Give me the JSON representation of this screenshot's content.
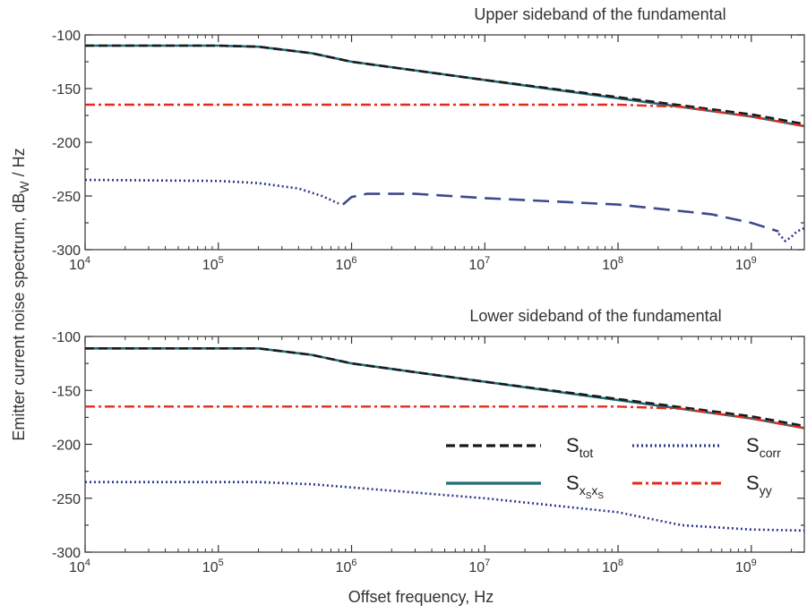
{
  "chart_data": [
    {
      "type": "line",
      "title": "Upper sideband of the fundamental",
      "xscale": "log",
      "xlim": [
        10000,
        2500000000
      ],
      "ylim": [
        -300,
        -100
      ],
      "xticks": [
        10000,
        100000,
        1000000,
        10000000,
        100000000,
        1000000000
      ],
      "xtick_labels": [
        {
          "base": "10",
          "exp": "4"
        },
        {
          "base": "10",
          "exp": "5"
        },
        {
          "base": "10",
          "exp": "6"
        },
        {
          "base": "10",
          "exp": "7"
        },
        {
          "base": "10",
          "exp": "8"
        },
        {
          "base": "10",
          "exp": "9"
        }
      ],
      "yticks": [
        "-100",
        "-150",
        "-200",
        "-250",
        "-300"
      ],
      "series": [
        {
          "key": "S_xsxs",
          "color": "#1f6e78",
          "style": "solid",
          "x": [
            10000,
            100000,
            200000,
            500000,
            1000000,
            10000000,
            100000000,
            1000000000,
            2500000000
          ],
          "y": [
            -110,
            -110,
            -111,
            -117,
            -125,
            -142,
            -159,
            -176,
            -185
          ]
        },
        {
          "key": "S_tot",
          "color": "#1a1a1a",
          "style": "dashed",
          "x": [
            10000,
            100000,
            200000,
            500000,
            1000000,
            10000000,
            100000000,
            1000000000,
            2500000000
          ],
          "y": [
            -110,
            -110,
            -111,
            -117,
            -125,
            -142,
            -158,
            -174,
            -183
          ]
        },
        {
          "key": "S_yy",
          "color": "#e8281c",
          "style": "dashdot",
          "x": [
            10000,
            100000000,
            300000000,
            1000000000,
            2500000000
          ],
          "y": [
            -165,
            -165,
            -167,
            -176,
            -185
          ]
        },
        {
          "key": "S_corr_dot1",
          "color": "#2f3a8c",
          "style": "dotted",
          "x": [
            10000,
            100000,
            200000,
            400000,
            600000,
            800000
          ],
          "y": [
            -235,
            -236,
            -238,
            -243,
            -250,
            -257
          ]
        },
        {
          "key": "S_corr_long",
          "color": "#3d4a8c",
          "style": "longdash",
          "x": [
            860000,
            1000000,
            1300000,
            3000000,
            10000000,
            100000000,
            500000000,
            1000000000,
            1600000000
          ],
          "y": [
            -258,
            -251,
            -248,
            -248,
            -252,
            -258,
            -267,
            -275,
            -283
          ]
        },
        {
          "key": "S_corr_dot2",
          "color": "#2f3a8c",
          "style": "dotted",
          "x": [
            1600000000,
            1800000000,
            2000000000,
            2200000000,
            2500000000
          ],
          "y": [
            -285,
            -292,
            -288,
            -283,
            -280
          ]
        }
      ]
    },
    {
      "type": "line",
      "title": "Lower sideband of the fundamental",
      "xscale": "log",
      "xlim": [
        10000,
        2500000000
      ],
      "ylim": [
        -300,
        -100
      ],
      "xticks": [
        10000,
        100000,
        1000000,
        10000000,
        100000000,
        1000000000
      ],
      "xtick_labels": [
        {
          "base": "10",
          "exp": "4"
        },
        {
          "base": "10",
          "exp": "5"
        },
        {
          "base": "10",
          "exp": "6"
        },
        {
          "base": "10",
          "exp": "7"
        },
        {
          "base": "10",
          "exp": "8"
        },
        {
          "base": "10",
          "exp": "9"
        }
      ],
      "yticks": [
        "-100",
        "-150",
        "-200",
        "-250",
        "-300"
      ],
      "series": [
        {
          "key": "S_xsxs",
          "color": "#1f6e78",
          "style": "solid",
          "x": [
            10000,
            100000,
            200000,
            500000,
            1000000,
            10000000,
            100000000,
            1000000000,
            2500000000
          ],
          "y": [
            -111,
            -111,
            -111,
            -117,
            -125,
            -142,
            -159,
            -176,
            -185
          ]
        },
        {
          "key": "S_tot",
          "color": "#1a1a1a",
          "style": "dashed",
          "x": [
            10000,
            100000,
            200000,
            500000,
            1000000,
            10000000,
            100000000,
            1000000000,
            2500000000
          ],
          "y": [
            -111,
            -111,
            -111,
            -117,
            -125,
            -142,
            -158,
            -174,
            -183
          ]
        },
        {
          "key": "S_yy",
          "color": "#e8281c",
          "style": "dashdot",
          "x": [
            10000,
            100000000,
            300000000,
            1000000000,
            2500000000
          ],
          "y": [
            -165,
            -165,
            -167,
            -176,
            -185
          ]
        },
        {
          "key": "S_corr",
          "color": "#2f3a8c",
          "style": "dotted",
          "x": [
            10000,
            100000,
            200000,
            500000,
            1000000,
            10000000,
            100000000,
            300000000,
            1000000000,
            2500000000
          ],
          "y": [
            -235,
            -235,
            -235,
            -237,
            -240,
            -250,
            -263,
            -275,
            -279,
            -280
          ]
        }
      ]
    }
  ],
  "xlabel": "Offset frequency, Hz",
  "ylabel": {
    "main": "Emitter current noise spectrum, dB",
    "sub": "W",
    "tail": " / Hz"
  },
  "legend": [
    {
      "key": "S_tot",
      "base": "S",
      "sub": "tot",
      "color": "#1a1a1a",
      "style": "dashed"
    },
    {
      "key": "S_corr",
      "base": "S",
      "sub": "corr",
      "color": "#2f3a8c",
      "style": "dotted"
    },
    {
      "key": "S_xsxs",
      "base": "S",
      "sub": "x",
      "subsub": "S",
      "sub2": "x",
      "subsub2": "S",
      "color": "#1f6e78",
      "style": "solid"
    },
    {
      "key": "S_yy",
      "base": "S",
      "sub": "yy",
      "color": "#e8281c",
      "style": "dashdot"
    }
  ],
  "legend_placement": "lower-right of lower panel"
}
